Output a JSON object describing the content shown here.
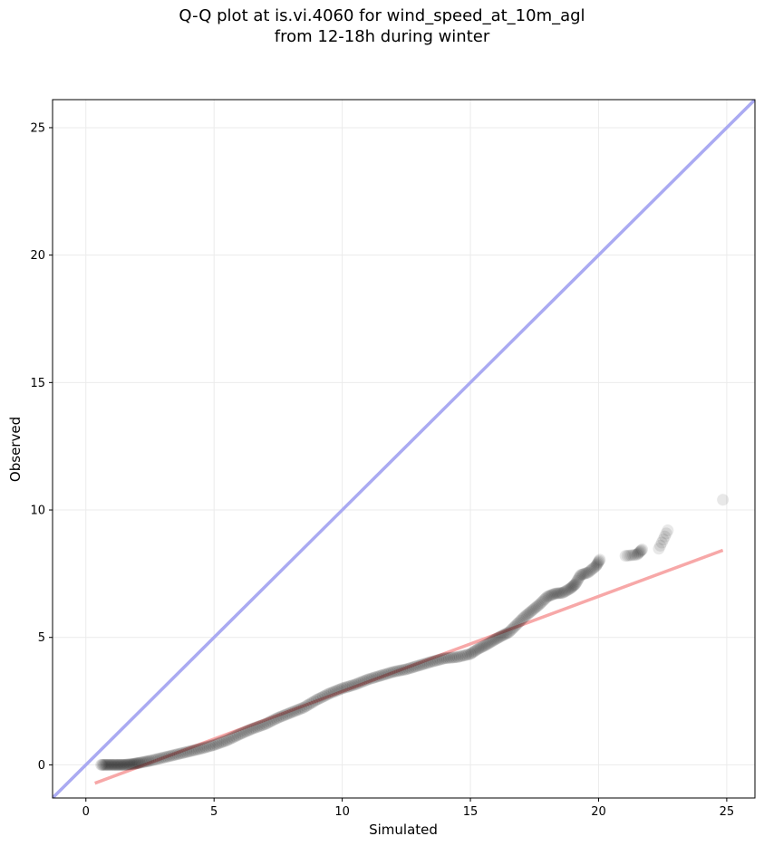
{
  "chart_data": {
    "type": "scatter",
    "title_lines": [
      "Q-Q plot at is.vi.4060 for wind_speed_at_10m_agl",
      "from 12-18h during winter"
    ],
    "xlabel": "Simulated",
    "ylabel": "Observed",
    "xlim": [
      -1.3,
      26.1
    ],
    "ylim": [
      -1.3,
      26.1
    ],
    "xticks": [
      0,
      5,
      10,
      15,
      20,
      25
    ],
    "yticks": [
      0,
      5,
      10,
      15,
      20,
      25
    ],
    "grid": true,
    "identity_line": {
      "color": "#aaaaf2"
    },
    "fit_line": {
      "color": "#f7a8a8",
      "x": [
        0.35,
        24.85
      ],
      "y": [
        -0.72,
        8.42
      ]
    },
    "marker_color": "#000000",
    "quantiles": {
      "x": [
        0.6,
        0.9,
        1.2,
        1.5,
        1.8,
        2.1,
        2.5,
        3.0,
        3.5,
        4.0,
        4.5,
        5.0,
        5.5,
        6.0,
        6.5,
        7.0,
        7.5,
        8.0,
        8.5,
        9.0,
        9.5,
        10.0,
        10.5,
        11.0,
        11.5,
        12.0,
        12.5,
        13.0,
        13.5,
        14.0,
        14.5,
        15.0,
        15.3,
        15.6,
        15.9,
        16.2,
        16.5,
        16.8,
        17.1,
        17.4,
        17.7,
        18.0,
        18.3,
        18.6,
        18.9,
        19.1,
        19.3,
        19.6,
        19.9,
        20.05,
        21.05,
        21.5,
        21.7,
        22.35,
        22.7,
        24.85
      ],
      "y": [
        0.0,
        0.0,
        0.0,
        0.0,
        0.03,
        0.08,
        0.16,
        0.28,
        0.4,
        0.52,
        0.64,
        0.78,
        0.96,
        1.2,
        1.42,
        1.6,
        1.85,
        2.05,
        2.25,
        2.55,
        2.8,
        3.0,
        3.15,
        3.35,
        3.5,
        3.65,
        3.75,
        3.9,
        4.05,
        4.18,
        4.23,
        4.35,
        4.55,
        4.7,
        4.88,
        5.05,
        5.2,
        5.5,
        5.8,
        6.05,
        6.3,
        6.6,
        6.72,
        6.75,
        6.92,
        7.1,
        7.45,
        7.55,
        7.8,
        8.05,
        8.2,
        8.25,
        8.45,
        8.48,
        9.2,
        10.4
      ]
    }
  }
}
